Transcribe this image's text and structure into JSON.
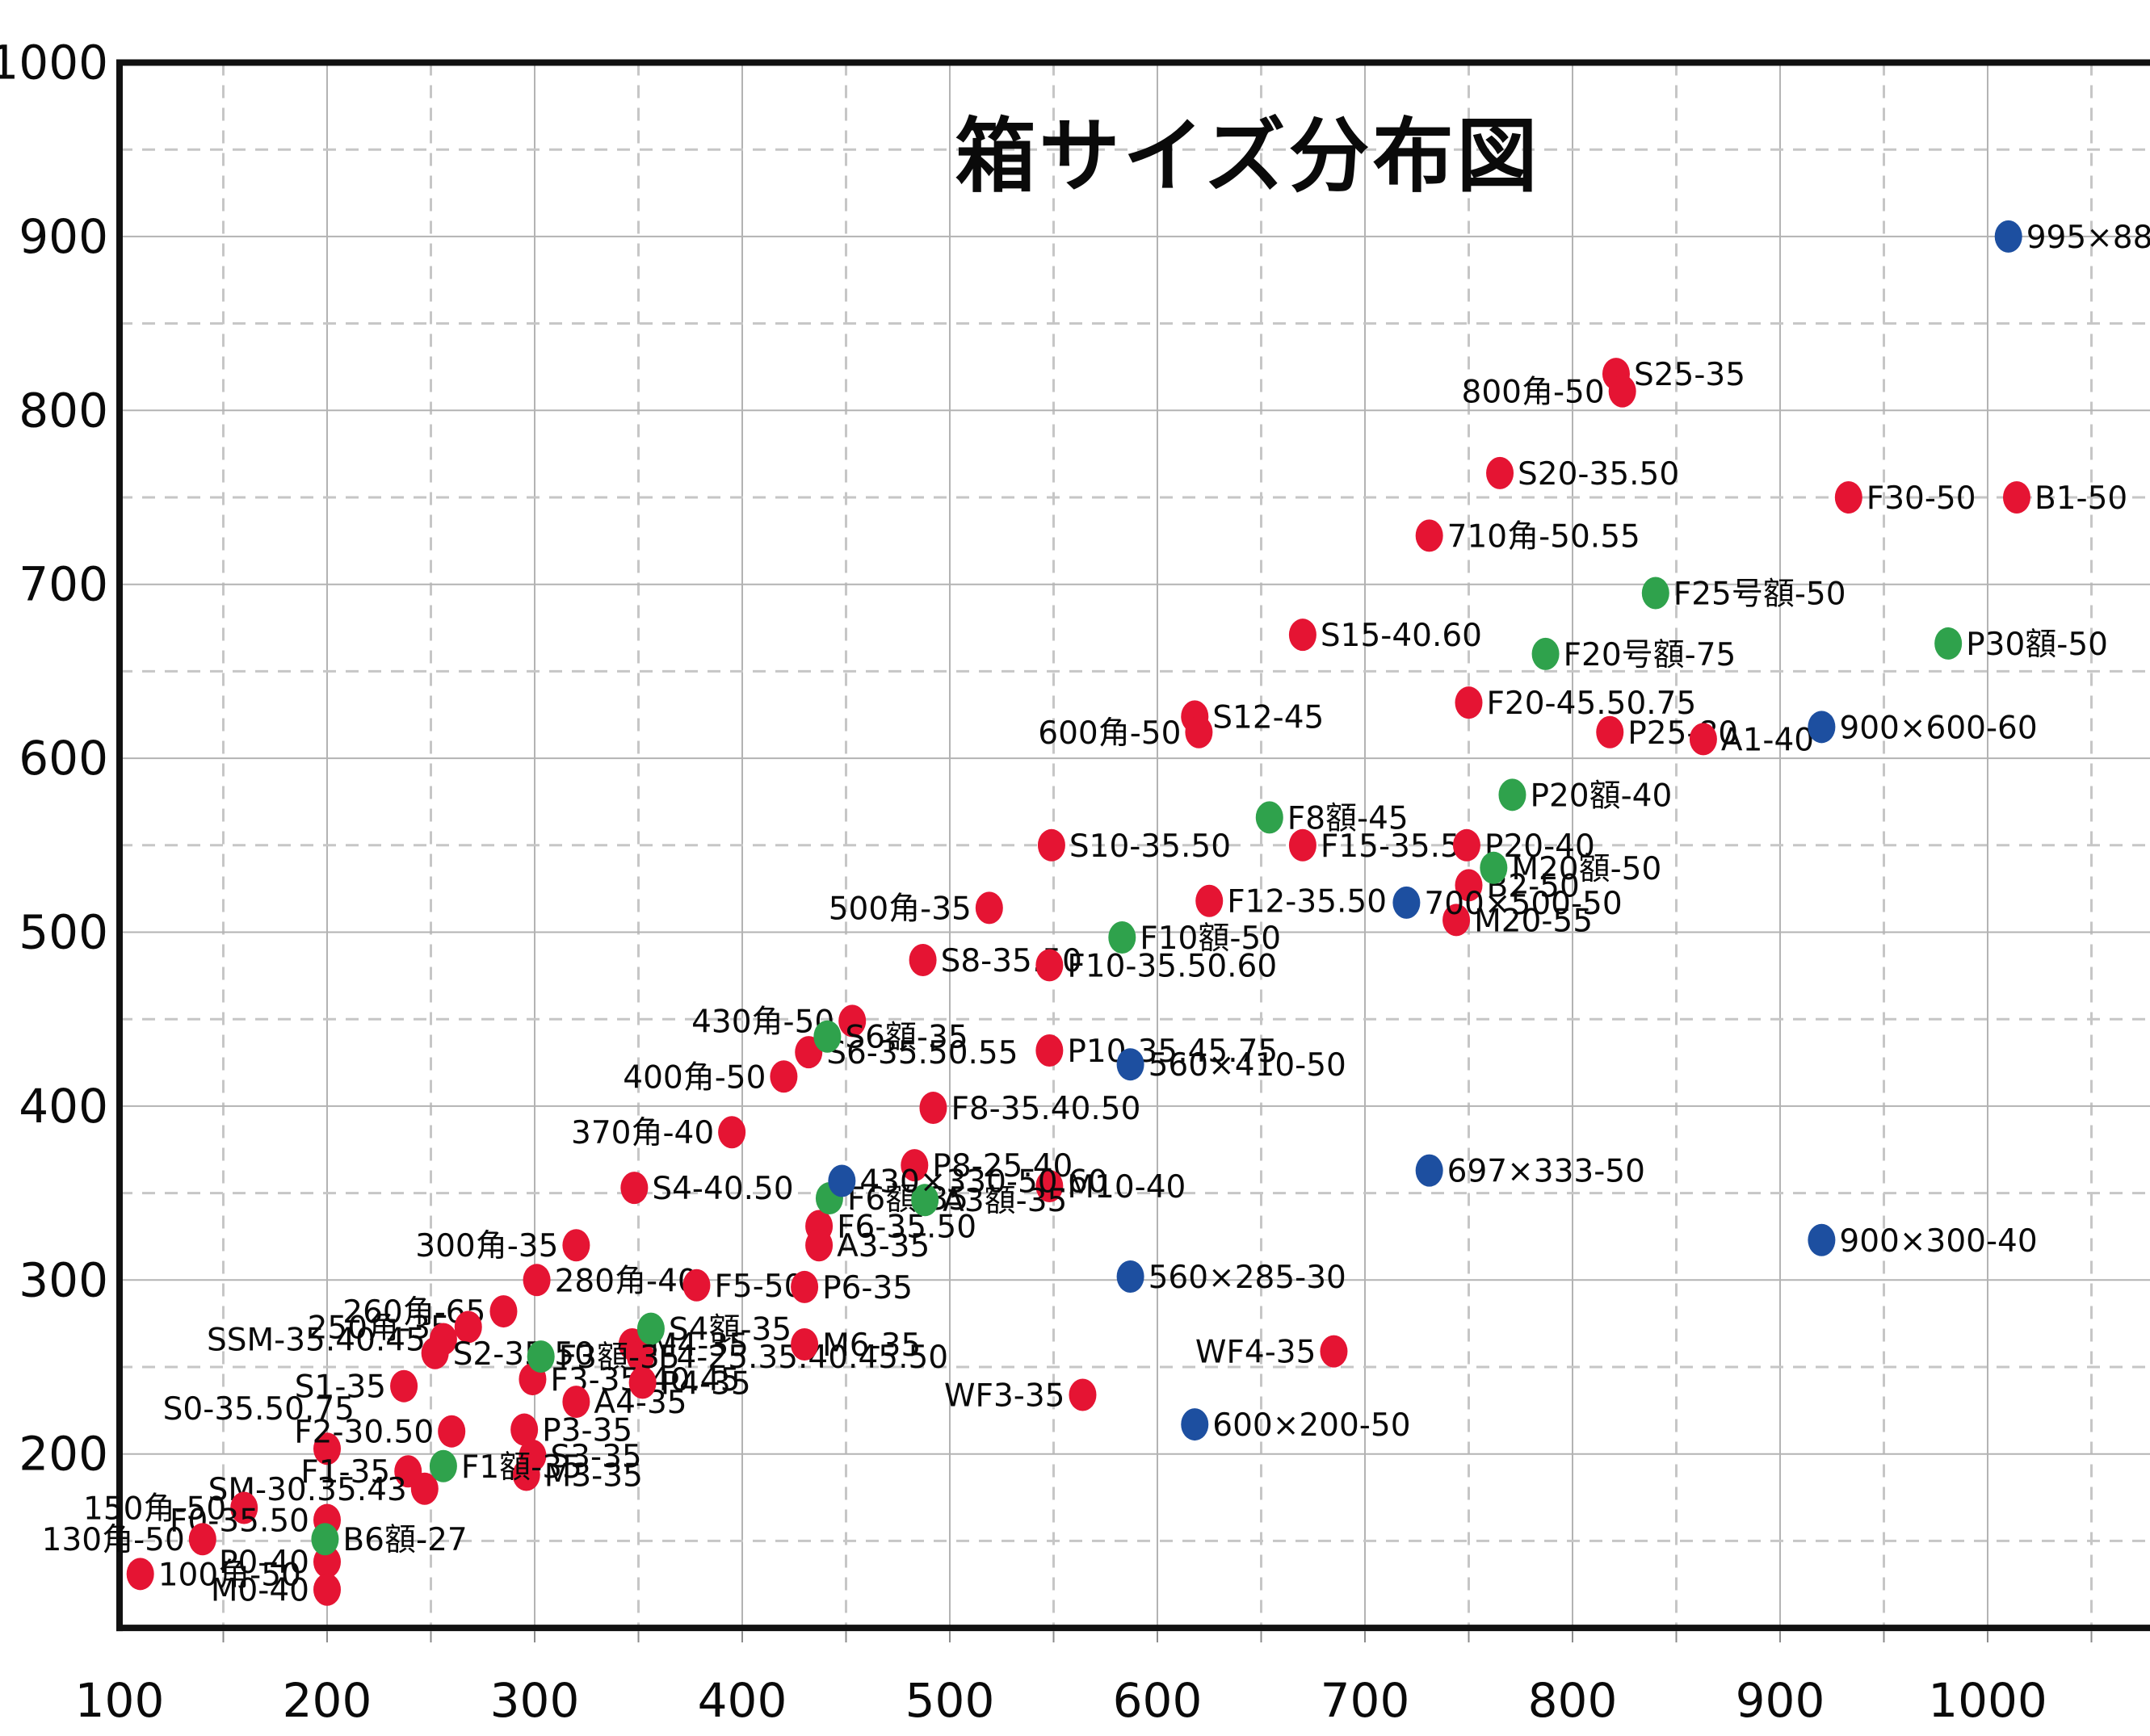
{
  "title": "箱サイズ分布図",
  "chart_data": {
    "type": "scatter",
    "title": "箱サイズ分布図",
    "xlabel": "",
    "ylabel": "",
    "legend": "none",
    "grid": {
      "major": "solid",
      "minor": "dashed",
      "minor_step": 50
    },
    "x_axis": {
      "min": 100,
      "max": 1078,
      "ticks": [
        100,
        200,
        300,
        400,
        500,
        600,
        700,
        800,
        900,
        1000
      ]
    },
    "y_axis": {
      "min": 100,
      "max": 1000,
      "ticks": [
        200,
        300,
        400,
        500,
        600,
        700,
        800,
        900,
        1000
      ]
    },
    "series": [
      {
        "name": "red-points",
        "color": "#e51433",
        "points": [
          {
            "label": "S25-35",
            "x": 821,
            "y": 821,
            "side": "right"
          },
          {
            "label": "800角-50",
            "x": 824,
            "y": 811,
            "side": "left"
          },
          {
            "label": "S20-35.50",
            "x": 765,
            "y": 764,
            "side": "right"
          },
          {
            "label": "F30-50",
            "x": 933,
            "y": 750,
            "side": "right"
          },
          {
            "label": "B1-50",
            "x": 1014,
            "y": 750,
            "side": "right"
          },
          {
            "label": "710角-50.55",
            "x": 731,
            "y": 728,
            "side": "right"
          },
          {
            "label": "S15-40.60",
            "x": 670,
            "y": 671,
            "side": "right"
          },
          {
            "label": "F20-45.50.75",
            "x": 750,
            "y": 632,
            "side": "right"
          },
          {
            "label": "S12-45",
            "x": 618,
            "y": 624,
            "side": "right"
          },
          {
            "label": "600角-50",
            "x": 620,
            "y": 615,
            "side": "left"
          },
          {
            "label": "P25-80",
            "x": 818,
            "y": 615,
            "side": "right"
          },
          {
            "label": "A1-40",
            "x": 863,
            "y": 611,
            "side": "right"
          },
          {
            "label": "S10-35.50",
            "x": 549,
            "y": 550,
            "side": "right"
          },
          {
            "label": "F15-35.50",
            "x": 670,
            "y": 550,
            "side": "right"
          },
          {
            "label": "P20-40",
            "x": 749,
            "y": 550,
            "side": "right"
          },
          {
            "label": "B2-50",
            "x": 750,
            "y": 527,
            "side": "right"
          },
          {
            "label": "F12-35.50",
            "x": 625,
            "y": 518,
            "side": "right"
          },
          {
            "label": "M20-55",
            "x": 744,
            "y": 507,
            "side": "right"
          },
          {
            "label": "500角-35",
            "x": 519,
            "y": 514,
            "side": "left"
          },
          {
            "label": "S8-35.50",
            "x": 487,
            "y": 484,
            "side": "right"
          },
          {
            "label": "F10-35.50.60",
            "x": 548,
            "y": 481,
            "side": "right"
          },
          {
            "label": "430角-50",
            "x": 453,
            "y": 449,
            "side": "left"
          },
          {
            "label": "S6-35.50.55",
            "x": 432,
            "y": 431,
            "side": "right"
          },
          {
            "label": "P10-35.45.75",
            "x": 548,
            "y": 432,
            "side": "right"
          },
          {
            "label": "400角-50",
            "x": 420,
            "y": 417,
            "side": "left"
          },
          {
            "label": "F8-35.40.50",
            "x": 492,
            "y": 399,
            "side": "right"
          },
          {
            "label": "370角-40",
            "x": 395,
            "y": 385,
            "side": "left"
          },
          {
            "label": "P8-25.40",
            "x": 483,
            "y": 366,
            "side": "right"
          },
          {
            "label": "M10-40",
            "x": 548,
            "y": 354,
            "side": "right"
          },
          {
            "label": "S4-40.50",
            "x": 348,
            "y": 353,
            "side": "right"
          },
          {
            "label": "F6-35.50",
            "x": 437,
            "y": 331,
            "side": "right"
          },
          {
            "label": "A3-35",
            "x": 437,
            "y": 320,
            "side": "right"
          },
          {
            "label": "300角-35",
            "x": 320,
            "y": 320,
            "side": "left"
          },
          {
            "label": "280角-40",
            "x": 301,
            "y": 300,
            "side": "right"
          },
          {
            "label": "F5-50",
            "x": 378,
            "y": 297,
            "side": "right"
          },
          {
            "label": "P6-35",
            "x": 430,
            "y": 296,
            "side": "right"
          },
          {
            "label": "260角-65",
            "x": 285,
            "y": 282,
            "side": "left"
          },
          {
            "label": "250角-35",
            "x": 268,
            "y": 273,
            "side": "left"
          },
          {
            "label": "SSM-35.40.45",
            "x": 256,
            "y": 266,
            "side": "left"
          },
          {
            "label": "M4-35",
            "x": 347,
            "y": 263,
            "side": "right"
          },
          {
            "label": "S2-35.50",
            "x": 252,
            "y": 258,
            "side": "right"
          },
          {
            "label": "F4-25.35.40.45.50",
            "x": 351,
            "y": 256,
            "side": "right"
          },
          {
            "label": "M6-35",
            "x": 430,
            "y": 263,
            "side": "right"
          },
          {
            "label": "WF4-35",
            "x": 685,
            "y": 259,
            "side": "left"
          },
          {
            "label": "S1-35",
            "x": 237,
            "y": 239,
            "side": "left"
          },
          {
            "label": "F3-35.40.45",
            "x": 299,
            "y": 243,
            "side": "right"
          },
          {
            "label": "A4-35",
            "x": 320,
            "y": 230,
            "side": "right"
          },
          {
            "label": "P4-35",
            "x": 352,
            "y": 241,
            "side": "right"
          },
          {
            "label": "WF3-35",
            "x": 564,
            "y": 234,
            "side": "left"
          },
          {
            "label": "S0-35.50.75",
            "x": 200,
            "y": 203,
            "side": "above"
          },
          {
            "label": "F2-30.50",
            "x": 260,
            "y": 213,
            "side": "left"
          },
          {
            "label": "P3-35",
            "x": 295,
            "y": 214,
            "side": "right"
          },
          {
            "label": "F1-35",
            "x": 239,
            "y": 190,
            "side": "left"
          },
          {
            "label": "S3-35",
            "x": 299,
            "y": 199,
            "side": "right"
          },
          {
            "label": "M3-35",
            "x": 296,
            "y": 188,
            "side": "right"
          },
          {
            "label": "SM-30.35.43",
            "x": 247,
            "y": 180,
            "side": "left"
          },
          {
            "label": "150角-50",
            "x": 160,
            "y": 169,
            "side": "left"
          },
          {
            "label": "F0-35.50",
            "x": 200,
            "y": 162,
            "side": "left"
          },
          {
            "label": "130角-50",
            "x": 140,
            "y": 151,
            "side": "left"
          },
          {
            "label": "P0-40",
            "x": 200,
            "y": 138,
            "side": "left"
          },
          {
            "label": "100角-50",
            "x": 110,
            "y": 131,
            "side": "right"
          },
          {
            "label": "M0-40",
            "x": 200,
            "y": 122,
            "side": "left"
          }
        ]
      },
      {
        "name": "green-points",
        "color": "#2fa24c",
        "points": [
          {
            "label": "F25号額-50",
            "x": 840,
            "y": 695,
            "side": "right"
          },
          {
            "label": "P30額-50",
            "x": 981,
            "y": 666,
            "side": "right"
          },
          {
            "label": "F20号額-75",
            "x": 787,
            "y": 660,
            "side": "right"
          },
          {
            "label": "P20額-40",
            "x": 771,
            "y": 579,
            "side": "right"
          },
          {
            "label": "F8額-45",
            "x": 654,
            "y": 566,
            "side": "right"
          },
          {
            "label": "M20額-50",
            "x": 762,
            "y": 537,
            "side": "right"
          },
          {
            "label": "F10額-50",
            "x": 583,
            "y": 497,
            "side": "right"
          },
          {
            "label": "S6額-35",
            "x": 441,
            "y": 440,
            "side": "right"
          },
          {
            "label": "F6額-35",
            "x": 442,
            "y": 347,
            "side": "right"
          },
          {
            "label": "A3額-35",
            "x": 488,
            "y": 346,
            "side": "right"
          },
          {
            "label": "S4額-35",
            "x": 356,
            "y": 272,
            "side": "right"
          },
          {
            "label": "F3額-35",
            "x": 303,
            "y": 256,
            "side": "right"
          },
          {
            "label": "F1額-35",
            "x": 256,
            "y": 193,
            "side": "right"
          },
          {
            "label": "B6額-27",
            "x": 199,
            "y": 151,
            "side": "right"
          }
        ]
      },
      {
        "name": "blue-points",
        "color": "#1d4fa0",
        "points": [
          {
            "label": "995×880-50",
            "x": 1010,
            "y": 900,
            "side": "right"
          },
          {
            "label": "900×600-60",
            "x": 920,
            "y": 618,
            "side": "right"
          },
          {
            "label": "700×500-50",
            "x": 720,
            "y": 517,
            "side": "right"
          },
          {
            "label": "697×333-50",
            "x": 731,
            "y": 363,
            "side": "right"
          },
          {
            "label": "560×410-50",
            "x": 587,
            "y": 424,
            "side": "right"
          },
          {
            "label": "560×285-30",
            "x": 587,
            "y": 302,
            "side": "right"
          },
          {
            "label": "430×330-50.60",
            "x": 448,
            "y": 357,
            "side": "right"
          },
          {
            "label": "900×300-40",
            "x": 920,
            "y": 323,
            "side": "right"
          },
          {
            "label": "600×200-50",
            "x": 618,
            "y": 217,
            "side": "right"
          }
        ]
      }
    ]
  },
  "colors": {
    "red": "#e51433",
    "green": "#2fa24c",
    "blue": "#1d4fa0",
    "grid_major": "#b3b3b3",
    "grid_minor": "#c6c6c6",
    "axis": "#111111",
    "background": "#ffffff"
  }
}
